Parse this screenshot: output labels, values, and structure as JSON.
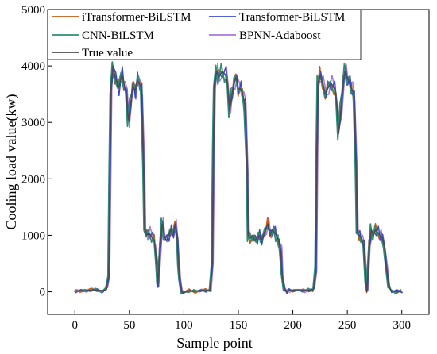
{
  "chart_data": {
    "type": "line",
    "xlabel": "Sample point",
    "ylabel": "Cooling load value(kw)",
    "xlim": [
      -25,
      325
    ],
    "ylim": [
      -400,
      5000
    ],
    "xticks": [
      0,
      50,
      100,
      150,
      200,
      250,
      300
    ],
    "yticks": [
      0,
      1000,
      2000,
      3000,
      4000,
      5000
    ],
    "grid": false,
    "legend_position": "top-left",
    "true_value": [
      [
        0,
        10
      ],
      [
        5,
        20
      ],
      [
        10,
        20
      ],
      [
        15,
        30
      ],
      [
        20,
        30
      ],
      [
        25,
        20
      ],
      [
        29,
        40
      ],
      [
        31,
        300
      ],
      [
        32,
        2000
      ],
      [
        33,
        3600
      ],
      [
        35,
        4000
      ],
      [
        37,
        3800
      ],
      [
        40,
        3600
      ],
      [
        43,
        3850
      ],
      [
        45,
        3700
      ],
      [
        47,
        3500
      ],
      [
        49,
        3050
      ],
      [
        51,
        3300
      ],
      [
        53,
        3650
      ],
      [
        55,
        3550
      ],
      [
        57,
        3750
      ],
      [
        59,
        3700
      ],
      [
        61,
        3600
      ],
      [
        63,
        2200
      ],
      [
        64,
        1100
      ],
      [
        66,
        1000
      ],
      [
        68,
        1050
      ],
      [
        71,
        950
      ],
      [
        73,
        900
      ],
      [
        75,
        500
      ],
      [
        76,
        100
      ],
      [
        78,
        750
      ],
      [
        80,
        1200
      ],
      [
        82,
        1000
      ],
      [
        84,
        900
      ],
      [
        86,
        1000
      ],
      [
        88,
        1100
      ],
      [
        90,
        1000
      ],
      [
        92,
        1200
      ],
      [
        94,
        900
      ],
      [
        95,
        500
      ],
      [
        96,
        200
      ],
      [
        98,
        0
      ],
      [
        100,
        -20
      ],
      [
        105,
        20
      ],
      [
        110,
        10
      ],
      [
        115,
        20
      ],
      [
        120,
        20
      ],
      [
        124,
        30
      ],
      [
        126,
        500
      ],
      [
        127,
        2500
      ],
      [
        128,
        3700
      ],
      [
        130,
        3900
      ],
      [
        132,
        3800
      ],
      [
        135,
        3900
      ],
      [
        138,
        3850
      ],
      [
        140,
        3700
      ],
      [
        142,
        3200
      ],
      [
        144,
        3500
      ],
      [
        146,
        3700
      ],
      [
        148,
        3800
      ],
      [
        150,
        3600
      ],
      [
        152,
        3600
      ],
      [
        154,
        3500
      ],
      [
        156,
        3300
      ],
      [
        158,
        2200
      ],
      [
        159,
        1000
      ],
      [
        161,
        950
      ],
      [
        163,
        1000
      ],
      [
        165,
        900
      ],
      [
        167,
        950
      ],
      [
        169,
        1000
      ],
      [
        171,
        900
      ],
      [
        173,
        1000
      ],
      [
        175,
        1100
      ],
      [
        177,
        1200
      ],
      [
        179,
        1000
      ],
      [
        181,
        1100
      ],
      [
        183,
        1050
      ],
      [
        185,
        1000
      ],
      [
        187,
        900
      ],
      [
        189,
        700
      ],
      [
        190,
        300
      ],
      [
        192,
        50
      ],
      [
        194,
        0
      ],
      [
        196,
        20
      ],
      [
        200,
        30
      ],
      [
        205,
        20
      ],
      [
        210,
        20
      ],
      [
        215,
        30
      ],
      [
        219,
        40
      ],
      [
        221,
        400
      ],
      [
        222,
        2500
      ],
      [
        223,
        3700
      ],
      [
        225,
        3850
      ],
      [
        227,
        3700
      ],
      [
        230,
        3500
      ],
      [
        232,
        3600
      ],
      [
        235,
        3700
      ],
      [
        238,
        3600
      ],
      [
        240,
        3400
      ],
      [
        242,
        2800
      ],
      [
        244,
        3200
      ],
      [
        246,
        3700
      ],
      [
        248,
        3900
      ],
      [
        250,
        3800
      ],
      [
        252,
        3700
      ],
      [
        254,
        3600
      ],
      [
        256,
        3500
      ],
      [
        258,
        2200
      ],
      [
        259,
        1050
      ],
      [
        261,
        1000
      ],
      [
        263,
        950
      ],
      [
        265,
        800
      ],
      [
        267,
        200
      ],
      [
        268,
        0
      ],
      [
        270,
        800
      ],
      [
        272,
        1100
      ],
      [
        274,
        1000
      ],
      [
        276,
        1100
      ],
      [
        278,
        1050
      ],
      [
        280,
        1000
      ],
      [
        282,
        950
      ],
      [
        284,
        800
      ],
      [
        286,
        400
      ],
      [
        288,
        100
      ],
      [
        290,
        20
      ],
      [
        295,
        0
      ],
      [
        300,
        10
      ]
    ],
    "series": [
      {
        "name": "iTransformer-BiLSTM",
        "color": "#c55a11",
        "width": 1.5
      },
      {
        "name": "Transformer-BiLSTM",
        "color": "#3a4bc9",
        "width": 1.5
      },
      {
        "name": "CNN-BiLSTM",
        "color": "#2e8f6f",
        "width": 1.8
      },
      {
        "name": "BPNN-Adaboost",
        "color": "#a978d8",
        "width": 1.5
      },
      {
        "name": "True value",
        "color": "#4a4a5a",
        "width": 1.5
      }
    ]
  }
}
